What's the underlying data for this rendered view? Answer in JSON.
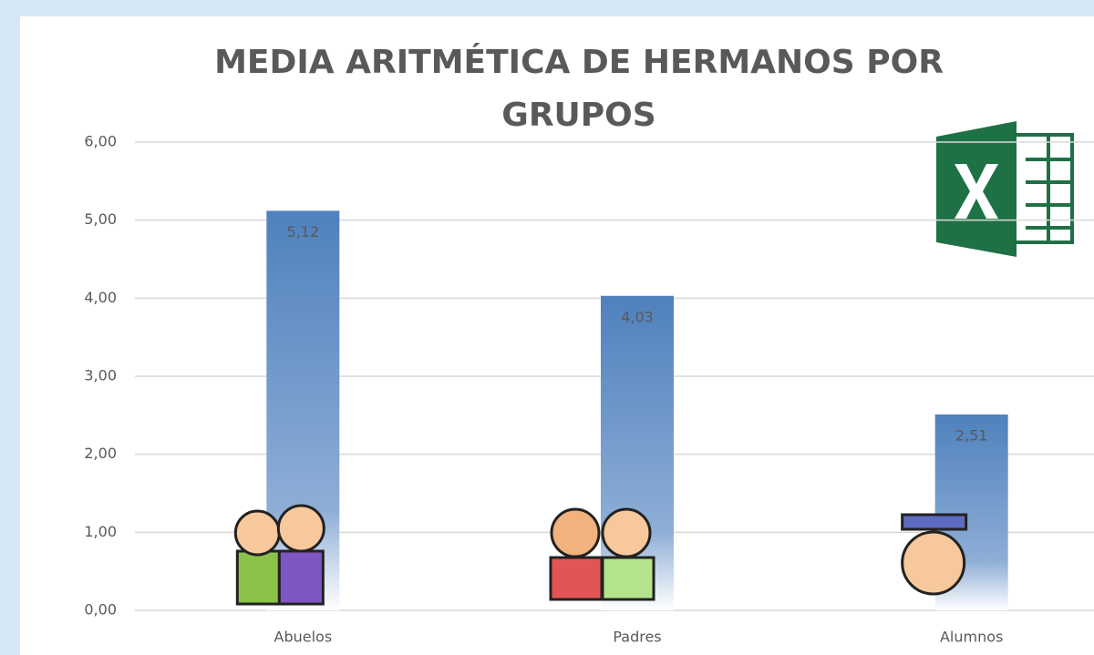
{
  "chart_data": {
    "type": "bar",
    "title": "MEDIA ARITMÉTICA DE HERMANOS POR GRUPOS",
    "categories": [
      "Abuelos",
      "Padres",
      "Alumnos"
    ],
    "values": [
      5.12,
      4.03,
      2.51
    ],
    "value_labels": [
      "5,12",
      "4,03",
      "2,51"
    ],
    "color": "#4f81bd",
    "ylim": [
      0,
      6
    ],
    "yticks": [
      {
        "value": 0,
        "label": "0,00"
      },
      {
        "value": 1,
        "label": "1,00"
      },
      {
        "value": 2,
        "label": "2,00"
      },
      {
        "value": 3,
        "label": "3,00"
      },
      {
        "value": 4,
        "label": "4,00"
      },
      {
        "value": 5,
        "label": "5,00"
      },
      {
        "value": 6,
        "label": "6,00"
      }
    ],
    "grid": true
  }
}
